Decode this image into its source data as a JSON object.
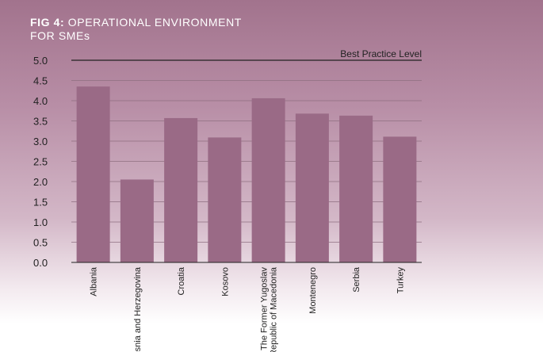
{
  "chart_data": {
    "type": "bar",
    "title_prefix": "FIG 4:",
    "title_line1": "OPERATIONAL ENVIRONMENT",
    "title_line2": "FOR SMEs",
    "xlabel": "",
    "ylabel": "",
    "ylim": [
      0,
      5
    ],
    "yticks": [
      "0.0",
      "0.5",
      "1.0",
      "1.5",
      "2.0",
      "2.5",
      "3.0",
      "3.5",
      "4.0",
      "4.5",
      "5.0"
    ],
    "categories": [
      "Albania",
      "Bosnia and Herzegovina",
      "Croatia",
      "Kosovo",
      "The Former Yugoslav Republic of Macedonia",
      "Montenegro",
      "Serbia",
      "Turkey"
    ],
    "category_lines": [
      [
        "Albania"
      ],
      [
        "Bosnia and Herzegovina"
      ],
      [
        "Croatia"
      ],
      [
        "Kosovo"
      ],
      [
        "The Former Yugoslav",
        "Republic of Macedonia"
      ],
      [
        "Montenegro"
      ],
      [
        "Serbia"
      ],
      [
        "Turkey"
      ]
    ],
    "values": [
      4.35,
      2.05,
      3.57,
      3.09,
      4.06,
      3.68,
      3.63,
      3.11
    ],
    "reference_line": {
      "label": "Best Practice Level",
      "value": 5.0
    },
    "grid": true,
    "colors": {
      "bar": "#9a6a86",
      "grid": "#8e6f80",
      "axis": "#222222",
      "title": "#ffffff"
    }
  }
}
